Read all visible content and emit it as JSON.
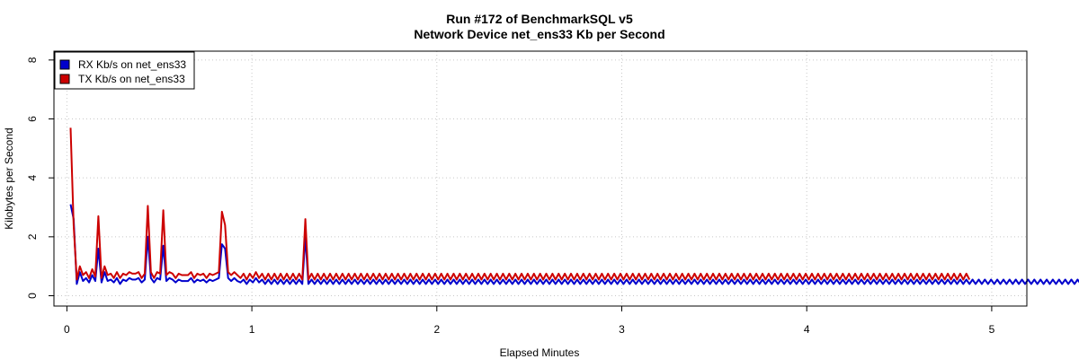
{
  "chart_data": {
    "type": "line",
    "title": "Run #172 of BenchmarkSQL v5",
    "subtitle": "Network Device net_ens33 Kb per Second",
    "xlabel": "Elapsed Minutes",
    "ylabel": "Kilobytes per Second",
    "xlim": [
      -0.07,
      5.19
    ],
    "ylim": [
      -0.35,
      8.3
    ],
    "x_ticks": [
      "0",
      "1",
      "2",
      "3",
      "4",
      "5"
    ],
    "y_ticks": [
      "0",
      "2",
      "4",
      "6",
      "8"
    ],
    "grid": true,
    "legend_position": "top-left",
    "x_start": 0.02,
    "x_step": 0.0167,
    "series": [
      {
        "name": "RX Kb/s on net_ens33",
        "color": "#0000cc",
        "values": [
          3.1,
          2.6,
          0.4,
          0.8,
          0.5,
          0.6,
          0.45,
          0.7,
          0.5,
          1.6,
          0.45,
          0.8,
          0.5,
          0.55,
          0.45,
          0.6,
          0.4,
          0.55,
          0.5,
          0.6,
          0.55,
          0.55,
          0.6,
          0.45,
          0.55,
          2.0,
          0.6,
          0.45,
          0.6,
          0.55,
          1.7,
          0.5,
          0.6,
          0.55,
          0.45,
          0.55,
          0.5,
          0.5,
          0.5,
          0.6,
          0.45,
          0.55,
          0.5,
          0.55,
          0.45,
          0.55,
          0.5,
          0.55,
          0.6,
          1.75,
          1.6,
          0.6,
          0.5,
          0.6,
          0.5,
          0.45,
          0.55,
          0.4,
          0.55,
          0.45,
          0.6,
          0.45,
          0.55,
          0.4,
          0.55,
          0.4,
          0.55,
          0.4,
          0.55,
          0.4,
          0.55,
          0.4,
          0.55,
          0.4,
          0.55,
          0.4,
          2.0,
          0.4,
          0.55,
          0.4,
          0.55,
          0.4,
          0.55,
          0.4,
          0.55,
          0.4,
          0.55,
          0.4,
          0.55,
          0.4,
          0.55,
          0.4,
          0.55,
          0.4,
          0.55,
          0.4,
          0.55,
          0.4,
          0.55,
          0.4,
          0.55,
          0.4,
          0.55,
          0.4,
          0.55,
          0.4,
          0.55,
          0.4,
          0.55,
          0.4,
          0.55,
          0.4,
          0.55,
          0.4,
          0.55,
          0.4,
          0.55,
          0.4,
          0.55,
          0.4,
          0.55,
          0.4,
          0.55,
          0.4,
          0.55,
          0.4,
          0.55,
          0.4,
          0.55,
          0.4,
          0.55,
          0.4,
          0.55,
          0.4,
          0.55,
          0.4,
          0.55,
          0.4,
          0.55,
          0.4,
          0.55,
          0.4,
          0.55,
          0.4,
          0.55,
          0.4,
          0.55,
          0.4,
          0.55,
          0.4,
          0.55,
          0.4,
          0.55,
          0.4,
          0.55,
          0.4,
          0.55,
          0.4,
          0.55,
          0.4,
          0.55,
          0.4,
          0.55,
          0.4,
          0.55,
          0.4,
          0.55,
          0.4,
          0.55,
          0.4,
          0.55,
          0.4,
          0.55,
          0.4,
          0.55,
          0.4,
          0.55,
          0.4,
          0.55,
          0.4,
          0.55,
          0.4,
          0.55,
          0.4,
          0.55,
          0.4,
          0.55,
          0.4,
          0.55,
          0.4,
          0.55,
          0.4,
          0.55,
          0.4,
          0.55,
          0.4,
          0.55,
          0.4,
          0.55,
          0.4,
          0.55,
          0.4,
          0.55,
          0.4,
          0.55,
          0.4,
          0.55,
          0.4,
          0.55,
          0.4,
          0.55,
          0.4,
          0.55,
          0.4,
          0.55,
          0.4,
          0.55,
          0.4,
          0.55,
          0.4,
          0.55,
          0.4,
          0.55,
          0.4,
          0.55,
          0.4,
          0.55,
          0.4,
          0.55,
          0.4,
          0.55,
          0.4,
          0.55,
          0.4,
          0.55,
          0.4,
          0.55,
          0.4,
          0.55,
          0.4,
          0.55,
          0.4,
          0.55,
          0.4,
          0.55,
          0.4,
          0.55,
          0.4,
          0.55,
          0.4,
          0.55,
          0.4,
          0.55,
          0.4,
          0.55,
          0.4,
          0.55,
          0.4,
          0.55,
          0.4,
          0.55,
          0.4,
          0.55,
          0.4,
          0.55,
          0.4,
          0.55,
          0.4,
          0.55,
          0.4,
          0.55,
          0.4,
          0.55,
          0.4,
          0.55,
          0.4,
          0.55,
          0.4,
          0.55,
          0.4,
          0.55,
          0.4,
          0.55,
          0.4,
          0.55,
          0.4,
          0.55,
          0.4,
          0.55,
          0.4,
          0.55,
          0.4,
          0.55,
          0.4,
          0.55,
          0.4,
          0.55,
          0.4,
          0.55,
          0.4,
          0.55,
          0.4,
          0.55,
          0.4,
          0.55,
          0.4,
          0.55,
          0.4,
          0.55,
          0.4,
          0.55,
          0.4,
          0.55,
          0.4,
          0.55,
          0.4,
          0.55,
          0.4,
          0.55,
          0.4,
          0.55,
          0.4,
          0.55,
          0.4,
          0.55,
          0.4,
          0.55,
          0.4,
          0.55,
          0.4,
          0.55,
          0.4,
          0.55,
          0.4,
          0.55,
          0.4,
          0.55,
          0.4
        ]
      },
      {
        "name": "TX Kb/s on net_ens33",
        "color": "#cc0000",
        "values": [
          5.7,
          2.4,
          0.55,
          1.0,
          0.7,
          0.8,
          0.6,
          0.9,
          0.65,
          2.7,
          0.6,
          1.0,
          0.7,
          0.75,
          0.6,
          0.8,
          0.6,
          0.75,
          0.7,
          0.8,
          0.75,
          0.75,
          0.8,
          0.6,
          0.75,
          3.05,
          0.8,
          0.6,
          0.8,
          0.75,
          2.9,
          0.7,
          0.8,
          0.75,
          0.6,
          0.75,
          0.7,
          0.7,
          0.7,
          0.8,
          0.6,
          0.75,
          0.7,
          0.75,
          0.6,
          0.75,
          0.7,
          0.75,
          0.8,
          2.85,
          2.4,
          0.8,
          0.7,
          0.8,
          0.7,
          0.6,
          0.75,
          0.55,
          0.75,
          0.6,
          0.8,
          0.6,
          0.75,
          0.55,
          0.75,
          0.55,
          0.75,
          0.55,
          0.75,
          0.55,
          0.75,
          0.55,
          0.75,
          0.55,
          0.75,
          0.55,
          2.6,
          0.55,
          0.75,
          0.55,
          0.75,
          0.55,
          0.75,
          0.55,
          0.75,
          0.55,
          0.75,
          0.55,
          0.75,
          0.55,
          0.75,
          0.55,
          0.75,
          0.55,
          0.75,
          0.55,
          0.75,
          0.55,
          0.75,
          0.55,
          0.75,
          0.55,
          0.75,
          0.55,
          0.75,
          0.55,
          0.75,
          0.55,
          0.75,
          0.55,
          0.75,
          0.55,
          0.75,
          0.55,
          0.75,
          0.55,
          0.75,
          0.55,
          0.75,
          0.55,
          0.75,
          0.55,
          0.75,
          0.55,
          0.75,
          0.55,
          0.75,
          0.55,
          0.75,
          0.55,
          0.75,
          0.55,
          0.75,
          0.55,
          0.75,
          0.55,
          0.75,
          0.55,
          0.75,
          0.55,
          0.75,
          0.55,
          0.75,
          0.55,
          0.75,
          0.55,
          0.75,
          0.55,
          0.75,
          0.55,
          0.75,
          0.55,
          0.75,
          0.55,
          0.75,
          0.55,
          0.75,
          0.55,
          0.75,
          0.55,
          0.75,
          0.55,
          0.75,
          0.55,
          0.75,
          0.55,
          0.75,
          0.55,
          0.75,
          0.55,
          0.75,
          0.55,
          0.75,
          0.55,
          0.75,
          0.55,
          0.75,
          0.55,
          0.75,
          0.55,
          0.75,
          0.55,
          0.75,
          0.55,
          0.75,
          0.55,
          0.75,
          0.55,
          0.75,
          0.55,
          0.75,
          0.55,
          0.75,
          0.55,
          0.75,
          0.55,
          0.75,
          0.55,
          0.75,
          0.55,
          0.75,
          0.55,
          0.75,
          0.55,
          0.75,
          0.55,
          0.75,
          0.55,
          0.75,
          0.55,
          0.75,
          0.55,
          0.75,
          0.55,
          0.75,
          0.55,
          0.75,
          0.55,
          0.75,
          0.55,
          0.75,
          0.55,
          0.75,
          0.55,
          0.75,
          0.55,
          0.75,
          0.55,
          0.75,
          0.55,
          0.75,
          0.55,
          0.75,
          0.55,
          0.75,
          0.55,
          0.75,
          0.55,
          0.75,
          0.55,
          0.75,
          0.55,
          0.75,
          0.55,
          0.75,
          0.55,
          0.75,
          0.55,
          0.75,
          0.55,
          0.75,
          0.55,
          0.75,
          0.55,
          0.75,
          0.55,
          0.75,
          0.55,
          0.75,
          0.55,
          0.75,
          0.55,
          0.75,
          0.55,
          0.75,
          0.55,
          0.75,
          0.55,
          0.75,
          0.55,
          0.75,
          0.55,
          0.75,
          0.55,
          0.75,
          0.55,
          0.75,
          0.55,
          0.75,
          0.55,
          0.75,
          0.55,
          0.75,
          0.55,
          0.75,
          0.55,
          0.75,
          0.55,
          0.75,
          0.55,
          0.75,
          0.55
        ]
      }
    ]
  }
}
